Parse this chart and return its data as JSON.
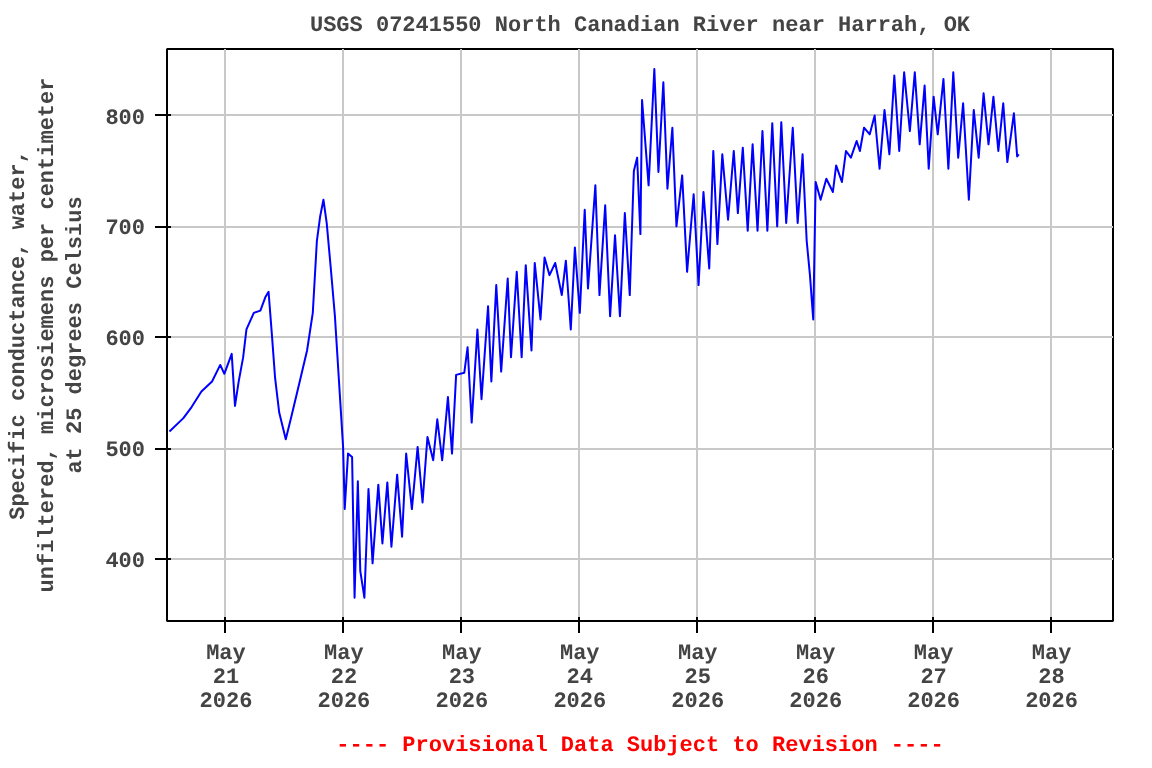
{
  "chart_data": {
    "type": "line",
    "title": "USGS 07241550 North Canadian River near Harrah, OK",
    "ylabel": "Specific conductance, water,\nunfiltered, microsiemens per centimeter\nat 25 degrees Celsius",
    "annotations": [
      "---- Provisional Data Subject to Revision ----"
    ],
    "xlim": [
      "2026-05-20T12:00",
      "2026-05-28T12:30"
    ],
    "xticks": [
      {
        "value": "2026-05-21",
        "label": "May\n21\n2026"
      },
      {
        "value": "2026-05-22",
        "label": "May\n22\n2026"
      },
      {
        "value": "2026-05-23",
        "label": "May\n23\n2026"
      },
      {
        "value": "2026-05-24",
        "label": "May\n24\n2026"
      },
      {
        "value": "2026-05-25",
        "label": "May\n25\n2026"
      },
      {
        "value": "2026-05-26",
        "label": "May\n26\n2026"
      },
      {
        "value": "2026-05-27",
        "label": "May\n27\n2026"
      },
      {
        "value": "2026-05-28",
        "label": "May\n28\n2026"
      }
    ],
    "ylim": [
      344,
      860
    ],
    "yticks": [
      400,
      500,
      600,
      700,
      800
    ],
    "grid": true,
    "x": [
      "2026-05-20T12:30",
      "2026-05-20T15:20",
      "2026-05-20T17:00",
      "2026-05-20T19:00",
      "2026-05-20T21:10",
      "2026-05-20T22:50",
      "2026-05-20T23:40",
      "2026-05-21T01:10",
      "2026-05-21T01:30",
      "2026-05-21T01:50",
      "2026-05-21T02:35",
      "2026-05-21T03:30",
      "2026-05-21T04:10",
      "2026-05-21T05:40",
      "2026-05-21T07:00",
      "2026-05-21T08:00",
      "2026-05-21T08:40",
      "2026-05-21T09:20",
      "2026-05-21T10:00",
      "2026-05-21T10:50",
      "2026-05-21T12:10",
      "2026-05-21T13:20",
      "2026-05-21T15:10",
      "2026-05-21T16:30",
      "2026-05-21T17:40",
      "2026-05-21T18:30",
      "2026-05-21T19:10",
      "2026-05-21T19:50",
      "2026-05-21T20:30",
      "2026-05-21T21:20",
      "2026-05-21T22:10",
      "2026-05-21T23:00",
      "2026-05-21T23:50",
      "2026-05-22T00:10",
      "2026-05-22T00:50",
      "2026-05-22T01:40",
      "2026-05-22T02:10",
      "2026-05-22T02:50",
      "2026-05-22T03:20",
      "2026-05-22T04:10",
      "2026-05-22T05:00",
      "2026-05-22T05:50",
      "2026-05-22T07:00",
      "2026-05-22T07:50",
      "2026-05-22T08:50",
      "2026-05-22T09:40",
      "2026-05-22T10:50",
      "2026-05-22T11:50",
      "2026-05-22T12:40",
      "2026-05-22T13:50",
      "2026-05-22T15:00",
      "2026-05-22T16:00",
      "2026-05-22T17:00",
      "2026-05-22T18:10",
      "2026-05-22T19:00",
      "2026-05-22T20:00",
      "2026-05-22T21:10",
      "2026-05-22T22:00",
      "2026-05-22T22:50",
      "2026-05-23T00:30",
      "2026-05-23T01:10",
      "2026-05-23T02:00",
      "2026-05-23T03:10",
      "2026-05-23T04:00",
      "2026-05-23T05:20",
      "2026-05-23T06:00",
      "2026-05-23T07:00",
      "2026-05-23T08:00",
      "2026-05-23T09:20",
      "2026-05-23T10:00",
      "2026-05-23T11:10",
      "2026-05-23T12:10",
      "2026-05-23T13:00",
      "2026-05-23T14:10",
      "2026-05-23T14:50",
      "2026-05-23T16:00",
      "2026-05-23T16:50",
      "2026-05-23T17:50",
      "2026-05-23T19:00",
      "2026-05-23T20:20",
      "2026-05-23T21:10",
      "2026-05-23T22:10",
      "2026-05-23T23:00",
      "2026-05-24T00:00",
      "2026-05-24T01:00",
      "2026-05-24T01:40",
      "2026-05-24T03:10",
      "2026-05-24T04:00",
      "2026-05-24T05:10",
      "2026-05-24T06:10",
      "2026-05-24T07:10",
      "2026-05-24T08:10",
      "2026-05-24T09:10",
      "2026-05-24T10:10",
      "2026-05-24T11:00",
      "2026-05-24T11:40",
      "2026-05-24T12:20",
      "2026-05-24T12:40",
      "2026-05-24T14:00",
      "2026-05-24T15:10",
      "2026-05-24T16:00",
      "2026-05-24T17:00",
      "2026-05-24T17:50",
      "2026-05-24T18:50",
      "2026-05-24T19:40",
      "2026-05-24T20:50",
      "2026-05-24T21:50",
      "2026-05-24T23:10",
      "2026-05-25T00:10",
      "2026-05-25T01:10",
      "2026-05-25T02:20",
      "2026-05-25T03:10",
      "2026-05-25T04:00",
      "2026-05-25T05:00",
      "2026-05-25T06:10",
      "2026-05-25T07:20",
      "2026-05-25T08:10",
      "2026-05-25T09:10",
      "2026-05-25T10:10",
      "2026-05-25T11:10",
      "2026-05-25T12:10",
      "2026-05-25T13:10",
      "2026-05-25T14:10",
      "2026-05-25T15:10",
      "2026-05-25T16:10",
      "2026-05-25T17:00",
      "2026-05-25T18:00",
      "2026-05-25T19:20",
      "2026-05-25T20:20",
      "2026-05-25T21:20",
      "2026-05-25T22:10",
      "2026-05-25T22:50",
      "2026-05-25T23:30",
      "2026-05-26T00:00",
      "2026-05-26T01:00",
      "2026-05-26T02:10",
      "2026-05-26T03:30",
      "2026-05-26T04:10",
      "2026-05-26T05:20",
      "2026-05-26T06:10",
      "2026-05-26T07:10",
      "2026-05-26T08:20",
      "2026-05-26T09:00",
      "2026-05-26T09:50",
      "2026-05-26T11:00",
      "2026-05-26T12:00",
      "2026-05-26T13:00",
      "2026-05-26T14:00",
      "2026-05-26T15:00",
      "2026-05-26T16:00",
      "2026-05-26T17:00",
      "2026-05-26T18:00",
      "2026-05-26T19:10",
      "2026-05-26T20:10",
      "2026-05-26T21:10",
      "2026-05-26T22:10",
      "2026-05-26T23:00",
      "2026-05-27T00:00",
      "2026-05-27T00:50",
      "2026-05-27T02:00",
      "2026-05-27T03:00",
      "2026-05-27T04:00",
      "2026-05-27T05:00",
      "2026-05-27T06:00",
      "2026-05-27T07:10",
      "2026-05-27T08:10",
      "2026-05-27T09:10",
      "2026-05-27T10:10",
      "2026-05-27T11:10",
      "2026-05-27T12:10",
      "2026-05-27T13:10",
      "2026-05-27T14:10",
      "2026-05-27T15:00",
      "2026-05-27T16:20",
      "2026-05-27T17:00",
      "2026-05-27T17:20"
    ],
    "series": [
      {
        "color": "#0000ff",
        "values": [
          515,
          527,
          537,
          551,
          560,
          575,
          567,
          585,
          562,
          538,
          560,
          582,
          607,
          622,
          624,
          636,
          641,
          603,
          563,
          532,
          508,
          529,
          563,
          588,
          622,
          687,
          709,
          724,
          703,
          662,
          619,
          560,
          501,
          445,
          495,
          492,
          365,
          470,
          389,
          365,
          463,
          396,
          467,
          414,
          469,
          411,
          476,
          420,
          495,
          445,
          501,
          451,
          510,
          489,
          526,
          489,
          546,
          495,
          566,
          568,
          591,
          523,
          607,
          544,
          628,
          560,
          647,
          569,
          653,
          582,
          659,
          582,
          665,
          588,
          667,
          616,
          672,
          656,
          667,
          638,
          669,
          607,
          681,
          622,
          715,
          644,
          737,
          638,
          719,
          619,
          692,
          619,
          712,
          638,
          750,
          762,
          693,
          814,
          737,
          842,
          749,
          830,
          734,
          789,
          700,
          746,
          659,
          729,
          647,
          731,
          662,
          768,
          684,
          765,
          706,
          768,
          712,
          771,
          696,
          774,
          696,
          786,
          696,
          793,
          700,
          794,
          703,
          789,
          703,
          765,
          687,
          656,
          616,
          740,
          724,
          743,
          731,
          755,
          740,
          768,
          762,
          777,
          768,
          789,
          783,
          800,
          752,
          805,
          765,
          836,
          768,
          839,
          786,
          839,
          774,
          827,
          752,
          817,
          783,
          833,
          752,
          839,
          762,
          811,
          724,
          805,
          762,
          820,
          774,
          817,
          768,
          811,
          758,
          802,
          763,
          765
        ]
      }
    ]
  }
}
